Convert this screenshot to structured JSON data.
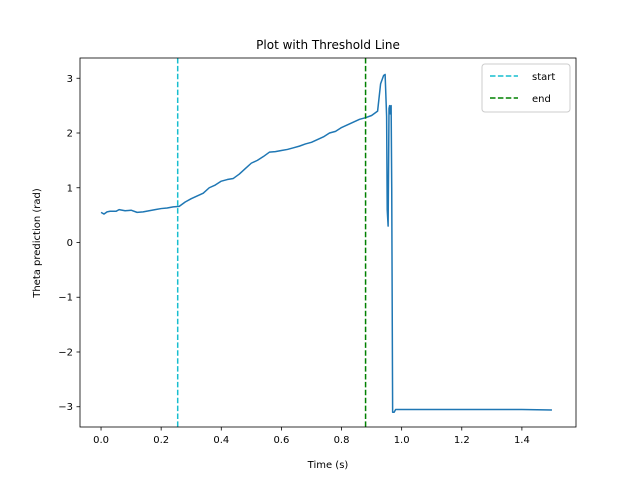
{
  "chart_data": {
    "type": "line",
    "title": "Plot with Threshold Line",
    "xlabel": "Time (s)",
    "ylabel": "Theta prediction (rad)",
    "xlim": [
      -0.07,
      1.58
    ],
    "ylim": [
      -3.37,
      3.37
    ],
    "xticks": [
      0.0,
      0.2,
      0.4,
      0.6,
      0.8,
      1.0,
      1.2,
      1.4
    ],
    "xtick_labels": [
      "0.0",
      "0.2",
      "0.4",
      "0.6",
      "0.8",
      "1.0",
      "1.2",
      "1.4"
    ],
    "yticks": [
      -3,
      -2,
      -1,
      0,
      1,
      2,
      3
    ],
    "ytick_labels": [
      "−3",
      "−2",
      "−1",
      "0",
      "1",
      "2",
      "3"
    ],
    "grid": false,
    "legend_position": "top-right",
    "series": [
      {
        "color": "#1f77b4",
        "style": "solid",
        "x": [
          0.0,
          0.01,
          0.02,
          0.03,
          0.05,
          0.06,
          0.08,
          0.1,
          0.12,
          0.14,
          0.16,
          0.18,
          0.2,
          0.22,
          0.24,
          0.26,
          0.28,
          0.3,
          0.32,
          0.34,
          0.36,
          0.38,
          0.4,
          0.42,
          0.44,
          0.46,
          0.48,
          0.5,
          0.52,
          0.54,
          0.56,
          0.58,
          0.6,
          0.62,
          0.64,
          0.66,
          0.68,
          0.7,
          0.72,
          0.74,
          0.76,
          0.78,
          0.8,
          0.82,
          0.84,
          0.86,
          0.88,
          0.9,
          0.92,
          0.93,
          0.94,
          0.945,
          0.95,
          0.952,
          0.955,
          0.958,
          0.96,
          0.962,
          0.965,
          0.967,
          0.97,
          0.975,
          0.98,
          1.0,
          1.1,
          1.2,
          1.3,
          1.4,
          1.5
        ],
        "y": [
          0.55,
          0.52,
          0.56,
          0.57,
          0.57,
          0.6,
          0.58,
          0.59,
          0.55,
          0.56,
          0.58,
          0.6,
          0.62,
          0.63,
          0.65,
          0.66,
          0.74,
          0.8,
          0.85,
          0.9,
          1.0,
          1.05,
          1.12,
          1.15,
          1.17,
          1.25,
          1.35,
          1.45,
          1.5,
          1.57,
          1.65,
          1.66,
          1.68,
          1.7,
          1.73,
          1.76,
          1.8,
          1.83,
          1.88,
          1.93,
          2.0,
          2.03,
          2.1,
          2.15,
          2.2,
          2.25,
          2.28,
          2.32,
          2.4,
          2.9,
          3.05,
          3.07,
          2.3,
          0.6,
          0.3,
          2.45,
          2.5,
          2.35,
          2.5,
          1.0,
          -3.1,
          -3.1,
          -3.05,
          -3.05,
          -3.05,
          -3.05,
          -3.05,
          -3.05,
          -3.06
        ]
      }
    ],
    "vlines": [
      {
        "x": 0.255,
        "name": "start",
        "color": "#17becf",
        "style": "dashed"
      },
      {
        "x": 0.88,
        "name": "end",
        "color": "#008000",
        "style": "dashed"
      }
    ]
  }
}
